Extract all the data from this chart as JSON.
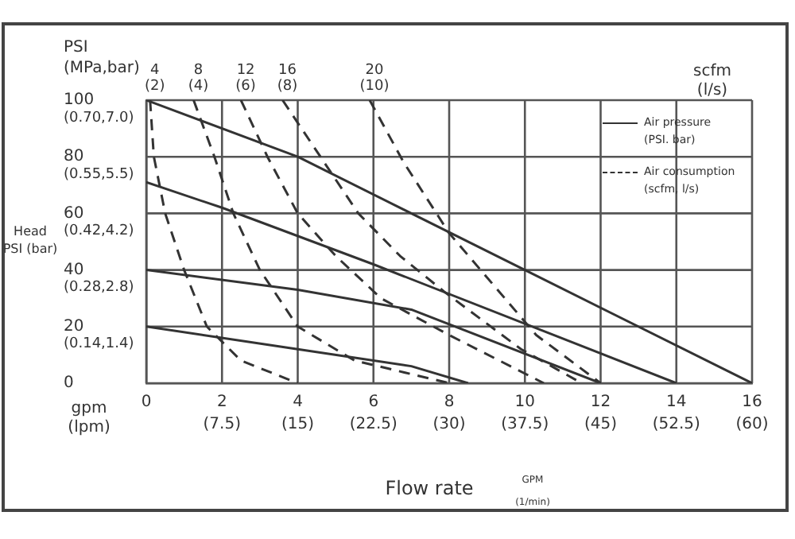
{
  "chart_data": {
    "type": "line",
    "xlabel": "Flow rate",
    "ylabel": "Head\nPSI (bar)",
    "xlim": [
      0,
      16
    ],
    "ylim": [
      0,
      100
    ],
    "xticks": [
      0,
      2,
      4,
      6,
      8,
      10,
      12,
      14,
      16
    ],
    "yticks": [
      0,
      20,
      40,
      60,
      80,
      100
    ],
    "grid": true,
    "series": [
      {
        "color": "#333333",
        "line_style": "solid",
        "x": [
          0,
          4,
          10,
          16
        ],
        "values": [
          100,
          80,
          40,
          0
        ]
      },
      {
        "color": "#333333",
        "line_style": "solid",
        "x": [
          0,
          2,
          6,
          14
        ],
        "values": [
          71,
          62,
          42,
          0
        ]
      },
      {
        "color": "#333333",
        "line_style": "solid",
        "x": [
          0,
          4,
          7,
          12
        ],
        "values": [
          40,
          33,
          26,
          0
        ]
      },
      {
        "color": "#333333",
        "line_style": "solid",
        "x": [
          0,
          4,
          7,
          8.5
        ],
        "values": [
          20,
          12,
          6,
          0
        ]
      },
      {
        "name": "4\n(2)",
        "color": "#333333",
        "line_style": "dashed",
        "x": [
          0.1,
          0.2,
          0.5,
          1,
          1.6,
          2.5,
          4
        ],
        "values": [
          100,
          80,
          60,
          40,
          20,
          8,
          0
        ]
      },
      {
        "name": "8\n(4)",
        "color": "#333333",
        "line_style": "dashed",
        "x": [
          1.25,
          1.8,
          2.3,
          3,
          4,
          5.5,
          8
        ],
        "values": [
          100,
          80,
          60,
          40,
          20,
          8,
          0
        ]
      },
      {
        "name": "12\n(6)",
        "color": "#333333",
        "line_style": "dashed",
        "x": [
          2.5,
          3.2,
          4,
          5,
          6.2,
          8,
          10.5
        ],
        "values": [
          100,
          80,
          60,
          45,
          30,
          17,
          0
        ]
      },
      {
        "name": "16\n(8)",
        "color": "#333333",
        "line_style": "dashed",
        "x": [
          3.6,
          4.6,
          5.6,
          6.7,
          7.9,
          9.9,
          11.5
        ],
        "values": [
          100,
          80,
          60,
          45,
          32,
          12,
          0
        ]
      },
      {
        "name": "20\n(10)",
        "color": "#333333",
        "line_style": "dashed",
        "x": [
          5.9,
          6.8,
          8,
          10.3,
          12
        ],
        "values": [
          100,
          78,
          53,
          17,
          0
        ]
      }
    ],
    "annotations": [
      "PSI\n(MPa,bar)",
      "scfm\n(l/s)",
      "Air pressure\n(PSI. bar)",
      "Air consumption\n(scfm, l/s)",
      "gpm\n(lpm)",
      "GPM\n(1/min)",
      "(0.14,1.4)",
      "(0.28,2.8)",
      "(0.42,4.2)",
      "(0.55,5.5)",
      "(0.70,7.0)",
      "(7.5)",
      "(15)",
      "(22.5)",
      "(30)",
      "(37.5)",
      "(45)",
      "(52.5)",
      "(60)"
    ]
  }
}
